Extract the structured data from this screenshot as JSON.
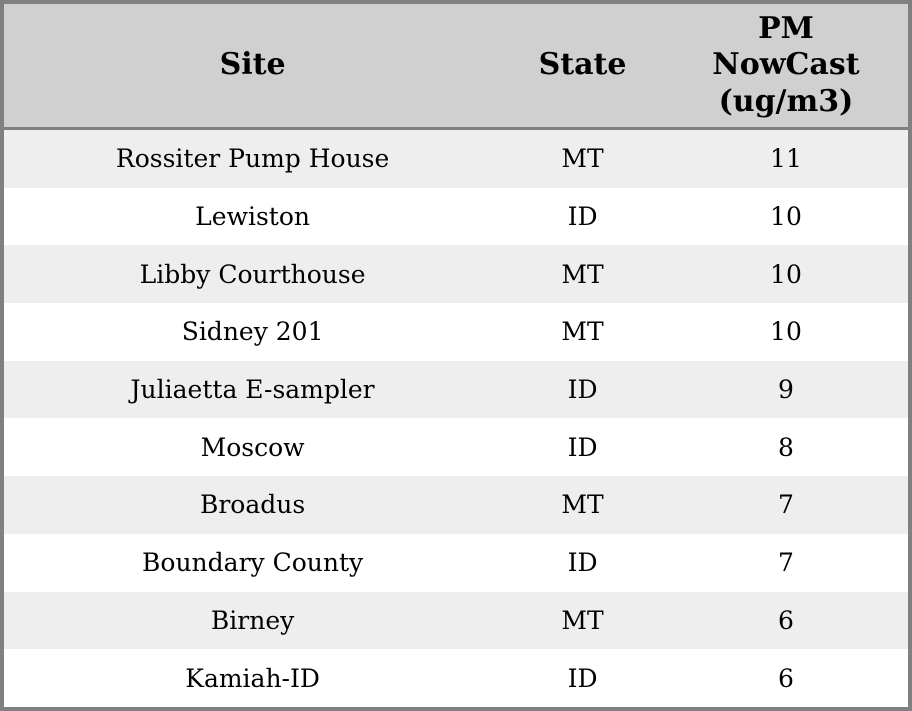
{
  "chart_data": {
    "type": "table",
    "columns": [
      "Site",
      "State",
      "PM NowCast (ug/m3)"
    ],
    "rows": [
      [
        "Rossiter Pump House",
        "MT",
        11
      ],
      [
        "Lewiston",
        "ID",
        10
      ],
      [
        "Libby Courthouse",
        "MT",
        10
      ],
      [
        "Sidney 201",
        "MT",
        10
      ],
      [
        "Juliaetta E-sampler",
        "ID",
        9
      ],
      [
        "Moscow",
        "ID",
        8
      ],
      [
        "Broadus",
        "MT",
        7
      ],
      [
        "Boundary County",
        "ID",
        7
      ],
      [
        "Birney",
        "MT",
        6
      ],
      [
        "Kamiah-ID",
        "ID",
        6
      ]
    ]
  },
  "colors": {
    "header_bg": "#d0d0d0",
    "row_odd_bg": "#eeeeee",
    "row_even_bg": "#ffffff",
    "border": "#808080",
    "text": "#000000"
  }
}
